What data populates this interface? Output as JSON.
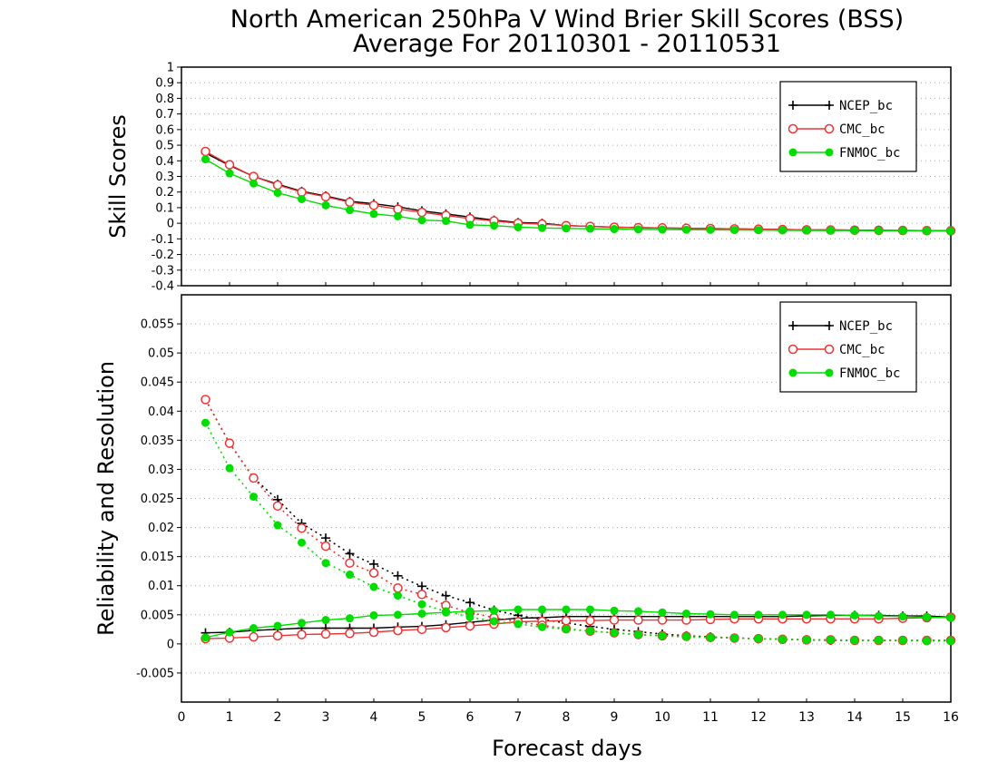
{
  "title_line1": "North American 250hPa V Wind Brier Skill Scores (BSS)",
  "title_line2": "Average For 20110301 - 20110531",
  "xlabel": "Forecast days",
  "colors": {
    "NCEP_bc": "#000000",
    "CMC_bc": "#ee3333",
    "FNMOC_bc": "#00dd00"
  },
  "chart_data": [
    {
      "type": "line",
      "title": "North American 250hPa V Wind Brier Skill Scores (BSS)",
      "ylabel": "Skill Scores",
      "xlabel": "",
      "xlim": [
        0,
        16
      ],
      "ylim": [
        -0.4,
        1
      ],
      "grid": true,
      "legend": "top-right",
      "yticks": [
        "1",
        "0.9",
        "0.8",
        "0.7",
        "0.6",
        "0.5",
        "0.4",
        "0.3",
        "0.2",
        "0.1",
        "0",
        "-0.1",
        "-0.2",
        "-0.3",
        "-0.4"
      ],
      "x": [
        0.5,
        1,
        1.5,
        2,
        2.5,
        3,
        3.5,
        4,
        4.5,
        5,
        5.5,
        6,
        6.5,
        7,
        7.5,
        8,
        8.5,
        9,
        9.5,
        10,
        10.5,
        11,
        11.5,
        12,
        12.5,
        13,
        13.5,
        14,
        14.5,
        15,
        15.5,
        16
      ],
      "series": [
        {
          "name": "NCEP_bc",
          "marker": "plus",
          "style": "solid",
          "values": [
            0.45,
            0.37,
            0.3,
            0.25,
            0.205,
            0.175,
            0.14,
            0.125,
            0.105,
            0.08,
            0.06,
            0.04,
            0.02,
            0.005,
            0.0,
            -0.015,
            -0.02,
            -0.025,
            -0.028,
            -0.03,
            -0.032,
            -0.034,
            -0.036,
            -0.038,
            -0.04,
            -0.042,
            -0.043,
            -0.044,
            -0.045,
            -0.046,
            -0.047,
            -0.048
          ]
        },
        {
          "name": "CMC_bc",
          "marker": "circle",
          "style": "solid",
          "values": [
            0.46,
            0.375,
            0.3,
            0.245,
            0.2,
            0.17,
            0.135,
            0.115,
            0.09,
            0.07,
            0.05,
            0.03,
            0.015,
            0.0,
            -0.005,
            -0.015,
            -0.02,
            -0.025,
            -0.028,
            -0.03,
            -0.032,
            -0.034,
            -0.036,
            -0.038,
            -0.04,
            -0.042,
            -0.043,
            -0.044,
            -0.045,
            -0.046,
            -0.047,
            -0.048
          ]
        },
        {
          "name": "FNMOC_bc",
          "marker": "dot",
          "style": "solid",
          "values": [
            0.41,
            0.32,
            0.255,
            0.195,
            0.155,
            0.115,
            0.085,
            0.06,
            0.045,
            0.02,
            0.015,
            -0.01,
            -0.015,
            -0.025,
            -0.03,
            -0.033,
            -0.035,
            -0.037,
            -0.039,
            -0.04,
            -0.041,
            -0.042,
            -0.043,
            -0.044,
            -0.045,
            -0.046,
            -0.047,
            -0.047,
            -0.048,
            -0.048,
            -0.049,
            -0.05
          ]
        }
      ]
    },
    {
      "type": "line",
      "ylabel": "Reliability and Resolution",
      "xlabel": "Forecast days",
      "xlim": [
        0,
        16
      ],
      "ylim": [
        -0.01,
        0.06
      ],
      "grid": true,
      "legend": "top-right",
      "yticks": [
        "0.055",
        "0.05",
        "0.045",
        "0.04",
        "0.035",
        "0.03",
        "0.025",
        "0.02",
        "0.015",
        "0.01",
        "0.005",
        "0",
        "-0.005"
      ],
      "xticks": [
        "0",
        "1",
        "2",
        "3",
        "4",
        "5",
        "6",
        "7",
        "8",
        "9",
        "10",
        "11",
        "12",
        "13",
        "14",
        "15",
        "16"
      ],
      "x": [
        0.5,
        1,
        1.5,
        2,
        2.5,
        3,
        3.5,
        4,
        4.5,
        5,
        5.5,
        6,
        6.5,
        7,
        7.5,
        8,
        8.5,
        9,
        9.5,
        10,
        10.5,
        11,
        11.5,
        12,
        12.5,
        13,
        13.5,
        14,
        14.5,
        15,
        15.5,
        16
      ],
      "series": [
        {
          "name": "NCEP_bc",
          "component": "resolution",
          "marker": "plus",
          "style": "solid",
          "values": [
            0.0019,
            0.002,
            0.0023,
            0.0025,
            0.0027,
            0.0027,
            0.0027,
            0.0027,
            0.0029,
            0.003,
            0.0033,
            0.0037,
            0.0041,
            0.0044,
            0.0045,
            0.0047,
            0.0047,
            0.0047,
            0.0047,
            0.0047,
            0.0047,
            0.0047,
            0.0047,
            0.0047,
            0.0047,
            0.0048,
            0.0049,
            0.0049,
            0.0049,
            0.0048,
            0.0048,
            0.0046
          ]
        },
        {
          "name": "NCEP_bc",
          "component": "reliability",
          "marker": "plus",
          "style": "dotted",
          "values": [
            0.042,
            0.0345,
            0.0285,
            0.0248,
            0.0207,
            0.0182,
            0.0155,
            0.0137,
            0.0117,
            0.0099,
            0.0083,
            0.0071,
            0.0058,
            0.0049,
            0.0042,
            0.0036,
            0.003,
            0.0025,
            0.0021,
            0.0017,
            0.0014,
            0.0012,
            0.001,
            0.0009,
            0.0008,
            0.0007,
            0.0006,
            0.0006,
            0.0006,
            0.0006,
            0.0006,
            0.0006
          ]
        },
        {
          "name": "CMC_bc",
          "component": "resolution",
          "marker": "circle",
          "style": "solid",
          "values": [
            0.0009,
            0.001,
            0.0012,
            0.0014,
            0.0016,
            0.0017,
            0.0018,
            0.002,
            0.0023,
            0.0025,
            0.0028,
            0.0031,
            0.0034,
            0.0038,
            0.0039,
            0.004,
            0.004,
            0.0041,
            0.0041,
            0.0041,
            0.0041,
            0.0042,
            0.0043,
            0.0043,
            0.0043,
            0.0043,
            0.0043,
            0.0043,
            0.0043,
            0.0044,
            0.0045,
            0.0046
          ]
        },
        {
          "name": "CMC_bc",
          "component": "reliability",
          "marker": "circle",
          "style": "dotted",
          "values": [
            0.042,
            0.0345,
            0.0285,
            0.0237,
            0.0199,
            0.0168,
            0.0139,
            0.0122,
            0.0096,
            0.0085,
            0.0066,
            0.0054,
            0.0045,
            0.0038,
            0.0032,
            0.0026,
            0.0022,
            0.0019,
            0.0016,
            0.0014,
            0.0013,
            0.0011,
            0.001,
            0.0009,
            0.0008,
            0.0007,
            0.0007,
            0.0006,
            0.0006,
            0.0006,
            0.0006,
            0.0006
          ]
        },
        {
          "name": "FNMOC_bc",
          "component": "resolution",
          "marker": "dot",
          "style": "solid",
          "values": [
            0.0011,
            0.002,
            0.0027,
            0.0031,
            0.0036,
            0.0041,
            0.0044,
            0.0049,
            0.005,
            0.0052,
            0.0054,
            0.0056,
            0.0057,
            0.0059,
            0.0059,
            0.0059,
            0.0059,
            0.0057,
            0.0056,
            0.0054,
            0.0052,
            0.0051,
            0.005,
            0.005,
            0.005,
            0.005,
            0.005,
            0.0049,
            0.0048,
            0.0047,
            0.0046,
            0.0045
          ]
        },
        {
          "name": "FNMOC_bc",
          "component": "reliability",
          "marker": "dot",
          "style": "dotted",
          "values": [
            0.038,
            0.0302,
            0.0253,
            0.0204,
            0.0174,
            0.0139,
            0.0119,
            0.0098,
            0.0083,
            0.0068,
            0.0056,
            0.0046,
            0.0039,
            0.0034,
            0.0029,
            0.0025,
            0.0022,
            0.0019,
            0.0016,
            0.0014,
            0.0012,
            0.0011,
            0.001,
            0.0009,
            0.0008,
            0.0007,
            0.0007,
            0.0006,
            0.0006,
            0.0006,
            0.0005,
            0.0005
          ]
        }
      ]
    }
  ]
}
